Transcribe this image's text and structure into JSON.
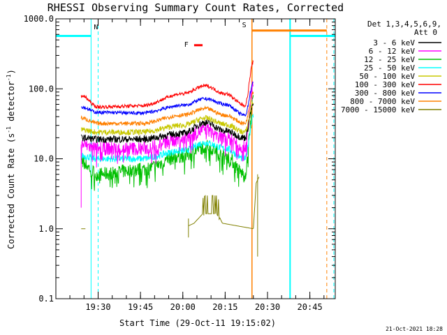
{
  "chart_data": {
    "type": "line",
    "title": "RHESSI Observing Summary Count Rates, Corrected",
    "xlabel": "Start Time (29-Oct-11 19:15:02)",
    "ylabel_main": "Corrected Count Rate (s",
    "ylabel_sup": "-1",
    "ylabel_mid": " detector",
    "ylabel_end": ")",
    "y_scale": "log",
    "ylim": [
      0.1,
      1000
    ],
    "y_ticks": [
      {
        "value": 0.1,
        "label": "0.1"
      },
      {
        "value": 1,
        "label": "1.0"
      },
      {
        "value": 10,
        "label": "10.0"
      },
      {
        "value": 100,
        "label": "100.0"
      },
      {
        "value": 1000,
        "label": "1000.0"
      }
    ],
    "xlim": [
      "19:15:02",
      "20:54:00"
    ],
    "x_ticks": [
      "19:30",
      "19:45",
      "20:00",
      "20:15",
      "20:30",
      "20:45"
    ],
    "grid": false,
    "legend": {
      "placement": "right",
      "header_line1": "Det 1,3,4,5,6,9,",
      "header_line2": "Att 0"
    },
    "series": [
      {
        "name": "3 - 6 keV",
        "color": "#000000",
        "t": [
          "19:24",
          "19:30",
          "19:45",
          "20:00",
          "20:08",
          "20:15",
          "20:22",
          "20:25"
        ],
        "values": [
          20,
          19,
          19,
          23,
          33,
          25,
          20,
          60
        ]
      },
      {
        "name": "6 - 12 keV",
        "color": "#ff00ff",
        "t": [
          "19:24",
          "19:30",
          "19:45",
          "20:00",
          "20:08",
          "20:15",
          "20:22",
          "20:25"
        ],
        "values": [
          16,
          14,
          14,
          19,
          26,
          20,
          15,
          120
        ]
      },
      {
        "name": "12 - 25 keV",
        "color": "#00c000",
        "t": [
          "19:24",
          "19:30",
          "19:45",
          "20:00",
          "20:08",
          "20:15",
          "20:22",
          "20:25"
        ],
        "values": [
          9,
          6,
          7,
          11,
          15,
          11,
          6,
          70
        ]
      },
      {
        "name": "25 - 50 keV",
        "color": "#00ffff",
        "t": [
          "19:24",
          "19:30",
          "19:45",
          "20:00",
          "20:08",
          "20:15",
          "20:22",
          "20:25"
        ],
        "values": [
          11,
          10,
          10,
          13,
          17,
          14,
          10,
          40
        ]
      },
      {
        "name": "50 - 100 keV",
        "color": "#c8c800",
        "t": [
          "19:24",
          "19:30",
          "19:45",
          "20:00",
          "20:08",
          "20:15",
          "20:22",
          "20:25"
        ],
        "values": [
          26,
          24,
          24,
          30,
          38,
          31,
          24,
          65
        ]
      },
      {
        "name": "100 - 300 keV",
        "color": "#ff0000",
        "t": [
          "19:24",
          "19:30",
          "19:45",
          "20:00",
          "20:08",
          "20:15",
          "20:22",
          "20:25"
        ],
        "values": [
          80,
          55,
          57,
          85,
          110,
          85,
          58,
          240
        ]
      },
      {
        "name": "300 - 800 keV",
        "color": "#0000ff",
        "t": [
          "19:24",
          "19:30",
          "19:45",
          "20:00",
          "20:08",
          "20:15",
          "20:22",
          "20:25"
        ],
        "values": [
          55,
          46,
          45,
          58,
          72,
          60,
          42,
          120
        ]
      },
      {
        "name": "800 - 7000 keV",
        "color": "#ff8000",
        "t": [
          "19:24",
          "19:30",
          "19:45",
          "20:00",
          "20:08",
          "20:15",
          "20:22",
          "20:25"
        ],
        "values": [
          38,
          32,
          32,
          42,
          52,
          42,
          32,
          90
        ]
      },
      {
        "name": "7000 - 15000 keV",
        "color": "#808000",
        "t": [
          "20:02",
          "20:04",
          "20:08",
          "20:12",
          "20:14",
          "20:25",
          "20:26",
          "20:27"
        ],
        "values": [
          1.1,
          1.2,
          1.8,
          1.8,
          1.2,
          1.0,
          4.5,
          5.5
        ]
      }
    ],
    "annotations": [
      {
        "label": "N",
        "color": "#00ffff"
      },
      {
        "label": "S",
        "color": "#ff8000"
      },
      {
        "label": "F",
        "color": "#ff0000"
      }
    ],
    "footer_stamp": "21-Oct-2021 18:28"
  }
}
